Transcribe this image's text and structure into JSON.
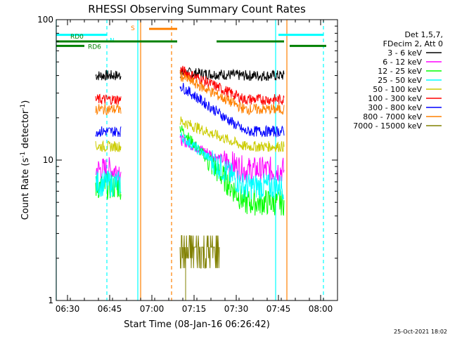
{
  "chart_data": {
    "type": "line",
    "title": "RHESSI Observing Summary Count Rates",
    "xlabel": "Start Time (08-Jan-16 06:26:42)",
    "ylabel_main": "Count Rate (s",
    "ylabel_sup": "-1",
    "ylabel_tail": " detector",
    "ylabel_end": ")",
    "timestamp": "25-Oct-2021 18:02",
    "y_scale": "log",
    "ylim": [
      1,
      100
    ],
    "xlim": [
      "06:26",
      "08:06"
    ],
    "x_ticks": [
      "06:30",
      "06:45",
      "07:00",
      "07:15",
      "07:30",
      "07:45",
      "08:00"
    ],
    "y_ticks": [
      "1",
      "10",
      "100"
    ],
    "legend_header": [
      "Det 1,5,7,",
      "FDecim 2, Att 0"
    ],
    "series": [
      {
        "name": "3 - 6 keV",
        "color": "#000000",
        "seg1": 40,
        "seg2_start": 42,
        "seg2_end": 40
      },
      {
        "name": "6 - 12 keV",
        "color": "#ff00ff",
        "seg1": 8.5,
        "seg2_start": 14,
        "seg2_end": 8.5
      },
      {
        "name": "12 - 25 keV",
        "color": "#00ff00",
        "seg1": 6.5,
        "seg2_start": 17,
        "seg2_end": 5
      },
      {
        "name": "25 - 50 keV",
        "color": "#00ffff",
        "seg1": 6.8,
        "seg2_start": 15,
        "seg2_end": 6.5
      },
      {
        "name": "50 - 100 keV",
        "color": "#cccc00",
        "seg1": 12.5,
        "seg2_start": 19,
        "seg2_end": 12.5
      },
      {
        "name": "100 - 300 keV",
        "color": "#ff0000",
        "seg1": 27,
        "seg2_start": 44,
        "seg2_end": 27
      },
      {
        "name": "300 - 800 keV",
        "color": "#0000ff",
        "seg1": 16,
        "seg2_start": 34,
        "seg2_end": 16
      },
      {
        "name": "800 - 7000 keV",
        "color": "#ff8000",
        "seg1": 23,
        "seg2_start": 40,
        "seg2_end": 23
      },
      {
        "name": "7000 - 15000 keV",
        "color": "#808000",
        "seg1": 2.4,
        "seg2_start": 2.4,
        "seg2_end": 2.4
      }
    ],
    "segments": {
      "seg1": [
        "06:40",
        "06:49"
      ],
      "seg2": [
        "07:10",
        "07:47"
      ],
      "seg2_decay_end": "07:33",
      "olive_segment": [
        "07:10",
        "07:24"
      ]
    },
    "flags": [
      {
        "label": "N",
        "color": "#00ffff",
        "ranges": [
          [
            "06:26",
            "06:44"
          ],
          [
            "07:45",
            "08:01"
          ]
        ],
        "level": 78
      },
      {
        "label": "S",
        "color": "#ff8000",
        "ranges": [
          [
            "06:59",
            "07:09"
          ]
        ],
        "level": 86
      },
      {
        "label": "RD0",
        "color": "#008000",
        "ranges": [
          [
            "06:26",
            "07:09"
          ],
          [
            "07:23",
            "07:47"
          ]
        ],
        "level": 70
      },
      {
        "label": "RD6",
        "color": "#008000",
        "ranges": [
          [
            "06:26",
            "06:36"
          ],
          [
            "07:49",
            "08:02"
          ]
        ],
        "level": 65
      }
    ],
    "vlines": [
      {
        "time": "06:26",
        "color": "#00ffff",
        "style": "solid"
      },
      {
        "time": "06:44",
        "color": "#00ffff",
        "style": "dashed"
      },
      {
        "time": "06:55",
        "color": "#00ffff",
        "style": "solid"
      },
      {
        "time": "06:56",
        "color": "#ff8000",
        "style": "solid"
      },
      {
        "time": "07:07",
        "color": "#ff8000",
        "style": "dashed"
      },
      {
        "time": "07:44",
        "color": "#00ffff",
        "style": "solid"
      },
      {
        "time": "07:48",
        "color": "#ff8000",
        "style": "solid"
      },
      {
        "time": "08:01",
        "color": "#00ffff",
        "style": "dashed"
      }
    ]
  }
}
